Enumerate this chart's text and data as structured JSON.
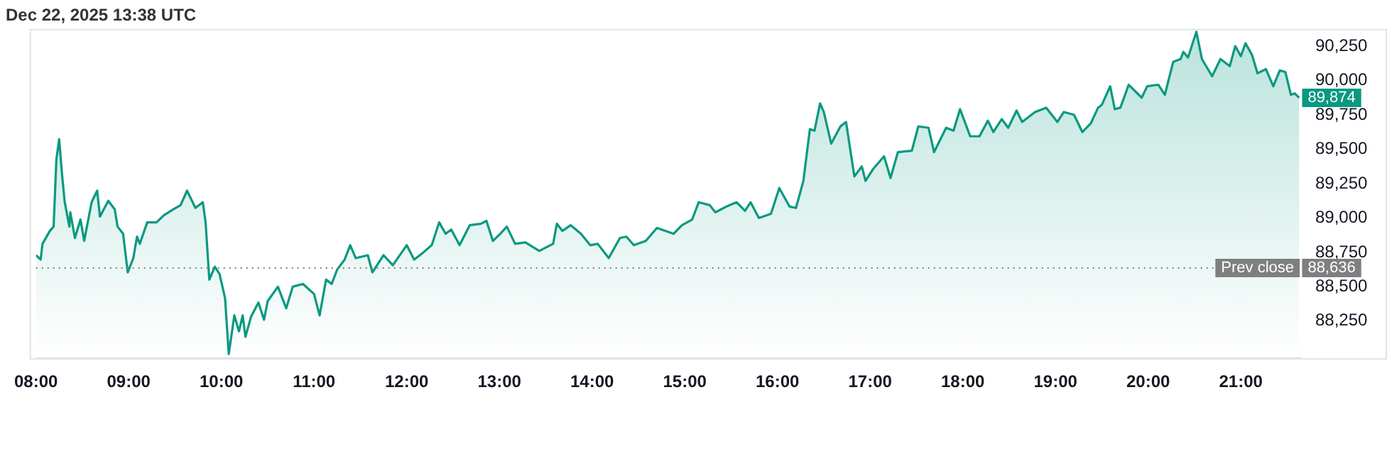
{
  "chart_data": {
    "type": "area",
    "title": "Dec 22, 2025 13:38 UTC",
    "x": [
      8.0,
      8.05,
      8.07,
      8.15,
      8.19,
      8.22,
      8.25,
      8.28,
      8.31,
      8.36,
      8.37,
      8.42,
      8.48,
      8.52,
      8.6,
      8.66,
      8.69,
      8.78,
      8.85,
      8.88,
      8.94,
      8.99,
      9.05,
      9.09,
      9.12,
      9.2,
      9.3,
      9.38,
      9.48,
      9.56,
      9.63,
      9.72,
      9.8,
      9.83,
      9.87,
      9.93,
      9.98,
      10.04,
      10.08,
      10.14,
      10.19,
      10.23,
      10.26,
      10.32,
      10.4,
      10.46,
      10.5,
      10.61,
      10.7,
      10.77,
      10.88,
      11.0,
      11.06,
      11.13,
      11.19,
      11.25,
      11.33,
      11.39,
      11.45,
      11.58,
      11.63,
      11.75,
      11.85,
      12.0,
      12.08,
      12.18,
      12.27,
      12.35,
      12.42,
      12.48,
      12.57,
      12.68,
      12.8,
      12.86,
      12.93,
      13.01,
      13.08,
      13.17,
      13.28,
      13.43,
      13.58,
      13.62,
      13.68,
      13.77,
      13.88,
      13.98,
      14.06,
      14.18,
      14.3,
      14.37,
      14.45,
      14.58,
      14.7,
      14.88,
      14.97,
      15.08,
      15.15,
      15.27,
      15.33,
      15.45,
      15.56,
      15.65,
      15.71,
      15.8,
      15.93,
      16.02,
      16.13,
      16.2,
      16.28,
      16.35,
      16.4,
      16.46,
      16.5,
      16.58,
      16.68,
      16.74,
      16.83,
      16.91,
      16.95,
      17.03,
      17.15,
      17.22,
      17.3,
      17.45,
      17.52,
      17.63,
      17.69,
      17.82,
      17.9,
      17.97,
      18.08,
      18.18,
      18.27,
      18.33,
      18.42,
      18.49,
      18.58,
      18.64,
      18.78,
      18.9,
      19.02,
      19.09,
      19.2,
      19.29,
      19.38,
      19.46,
      19.5,
      19.59,
      19.64,
      19.7,
      19.79,
      19.93,
      19.99,
      20.11,
      20.18,
      20.27,
      20.35,
      20.38,
      20.43,
      20.52,
      20.58,
      20.69,
      20.78,
      20.88,
      20.94,
      21.0,
      21.05,
      21.12,
      21.18,
      21.27,
      21.35,
      21.42,
      21.48,
      21.54,
      21.58,
      21.63
    ],
    "series": [
      {
        "color": "#089981",
        "values": [
          88729,
          88697,
          88812,
          88906,
          88937,
          89427,
          89573,
          89323,
          89114,
          88937,
          89041,
          88854,
          88989,
          88833,
          89114,
          89198,
          89010,
          89125,
          89062,
          88937,
          88885,
          88604,
          88708,
          88864,
          88812,
          88968,
          88968,
          89020,
          89062,
          89093,
          89198,
          89073,
          89114,
          88968,
          88552,
          88645,
          88593,
          88416,
          88010,
          88291,
          88176,
          88291,
          88135,
          88281,
          88385,
          88260,
          88395,
          88500,
          88343,
          88500,
          88520,
          88447,
          88291,
          88552,
          88520,
          88625,
          88697,
          88802,
          88708,
          88729,
          88604,
          88729,
          88656,
          88802,
          88697,
          88750,
          88802,
          88968,
          88885,
          88916,
          88802,
          88947,
          88958,
          88979,
          88833,
          88885,
          88937,
          88812,
          88822,
          88760,
          88812,
          88958,
          88906,
          88947,
          88885,
          88802,
          88812,
          88708,
          88854,
          88864,
          88802,
          88833,
          88927,
          88885,
          88947,
          88989,
          89114,
          89093,
          89041,
          89083,
          89114,
          89052,
          89114,
          89000,
          89031,
          89218,
          89083,
          89073,
          89270,
          89646,
          89635,
          89833,
          89771,
          89541,
          89666,
          89698,
          89302,
          89375,
          89270,
          89354,
          89448,
          89291,
          89479,
          89489,
          89666,
          89656,
          89479,
          89656,
          89635,
          89791,
          89594,
          89594,
          89708,
          89625,
          89719,
          89656,
          89781,
          89698,
          89771,
          89802,
          89698,
          89771,
          89750,
          89625,
          89687,
          89802,
          89823,
          89958,
          89791,
          89802,
          89969,
          89875,
          89958,
          89969,
          89896,
          90135,
          90156,
          90208,
          90167,
          90354,
          90156,
          90031,
          90156,
          90104,
          90250,
          90177,
          90271,
          90187,
          90052,
          90083,
          89958,
          90073,
          90062,
          89896,
          89906,
          89874
        ]
      }
    ],
    "xlim": [
      8,
      21.65
    ],
    "xticks": [
      {
        "value": 8,
        "label": "08:00"
      },
      {
        "value": 9,
        "label": "09:00"
      },
      {
        "value": 10,
        "label": "10:00"
      },
      {
        "value": 11,
        "label": "11:00"
      },
      {
        "value": 12,
        "label": "12:00"
      },
      {
        "value": 13,
        "label": "13:00"
      },
      {
        "value": 14,
        "label": "14:00"
      },
      {
        "value": 15,
        "label": "15:00"
      },
      {
        "value": 16,
        "label": "16:00"
      },
      {
        "value": 17,
        "label": "17:00"
      },
      {
        "value": 18,
        "label": "18:00"
      },
      {
        "value": 19,
        "label": "19:00"
      },
      {
        "value": 20,
        "label": "20:00"
      },
      {
        "value": 21,
        "label": "21:00"
      }
    ],
    "ylim": [
      87980,
      90375
    ],
    "yticks": [
      {
        "value": 88250,
        "label": "88,250"
      },
      {
        "value": 88500,
        "label": "88,500"
      },
      {
        "value": 88750,
        "label": "88,750"
      },
      {
        "value": 89000,
        "label": "89,000"
      },
      {
        "value": 89250,
        "label": "89,250"
      },
      {
        "value": 89500,
        "label": "89,500"
      },
      {
        "value": 89750,
        "label": "89,750"
      },
      {
        "value": 90000,
        "label": "90,000"
      },
      {
        "value": 90250,
        "label": "90,250"
      }
    ],
    "ref_lines": [
      {
        "axis": "y",
        "value": 88636,
        "label": "Prev close",
        "color": "#7f7f7f",
        "line_style": "dotted"
      }
    ],
    "annotations": [
      {
        "text": "89,874",
        "x": 21.63,
        "y": 89874
      },
      {
        "text": "88,636",
        "x": 21.63,
        "y": 88636
      }
    ],
    "grid": false,
    "legend": false
  }
}
